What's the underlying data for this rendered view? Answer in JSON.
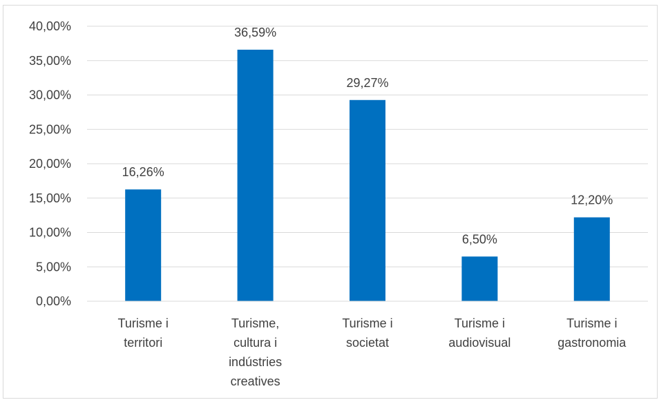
{
  "chart_data": {
    "type": "bar",
    "categories": [
      [
        "Turisme i",
        "territori"
      ],
      [
        "Turisme,",
        "cultura i",
        "indústries",
        "creatives"
      ],
      [
        "Turisme i",
        "societat"
      ],
      [
        "Turisme i",
        "audiovisual"
      ],
      [
        "Turisme i",
        "gastronomia"
      ]
    ],
    "values": [
      16.26,
      36.59,
      29.27,
      6.5,
      12.2
    ],
    "data_labels": [
      "16,26%",
      "36,59%",
      "29,27%",
      "6,50%",
      "12,20%"
    ],
    "y_ticks": [
      0,
      5,
      10,
      15,
      20,
      25,
      30,
      35,
      40
    ],
    "y_tick_labels": [
      "0,00%",
      "5,00%",
      "10,00%",
      "15,00%",
      "20,00%",
      "25,00%",
      "30,00%",
      "35,00%",
      "40,00%"
    ],
    "ylim": [
      0,
      40
    ],
    "grid": true,
    "bar_color": "#0070c0",
    "gridline_color": "#d9d9d9",
    "title": "",
    "xlabel": "",
    "ylabel": ""
  }
}
